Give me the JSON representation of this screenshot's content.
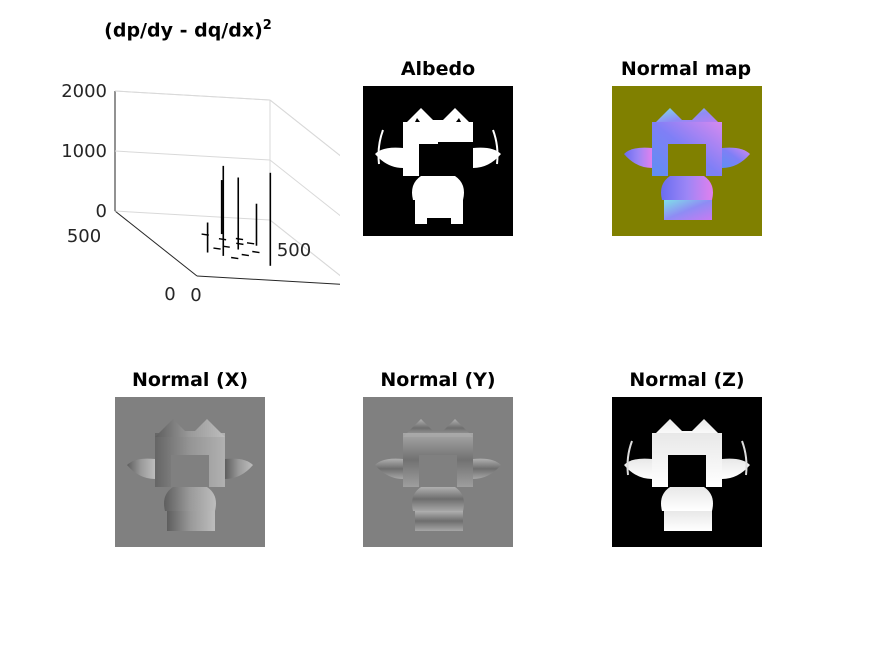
{
  "figure": {
    "titles": {
      "surface": "(dp/dy - dq/dx)",
      "surface_sup": "2",
      "albedo": "Albedo",
      "normal_map": "Normal map",
      "normal_x": "Normal (X)",
      "normal_y": "Normal (Y)",
      "normal_z": "Normal (Z)"
    },
    "colors": {
      "normal_map_background": "#808000",
      "normal_gray_background": "#808080",
      "albedo_background": "#000000"
    }
  },
  "chart_data": [
    {
      "type": "surface3d",
      "title": "(dp/dy - dq/dx)^2",
      "zticks": [
        "0",
        "1000",
        "2000"
      ],
      "xticks": [
        "0",
        "500"
      ],
      "yticks": [
        "0",
        "500"
      ],
      "zlim": [
        0,
        2000
      ],
      "xlim": [
        0,
        500
      ],
      "ylim": [
        0,
        500
      ],
      "spikes": [
        {
          "x": 320,
          "y": 180,
          "z": 1500
        },
        {
          "x": 260,
          "y": 260,
          "z": 1200
        },
        {
          "x": 380,
          "y": 300,
          "z": 1550
        },
        {
          "x": 140,
          "y": 270,
          "z": 900
        },
        {
          "x": 220,
          "y": 340,
          "z": 700
        },
        {
          "x": 300,
          "y": 140,
          "z": 500
        }
      ]
    },
    {
      "type": "image",
      "title": "Albedo"
    },
    {
      "type": "image",
      "title": "Normal map"
    },
    {
      "type": "image",
      "title": "Normal (X)"
    },
    {
      "type": "image",
      "title": "Normal (Y)"
    },
    {
      "type": "image",
      "title": "Normal (Z)"
    }
  ]
}
